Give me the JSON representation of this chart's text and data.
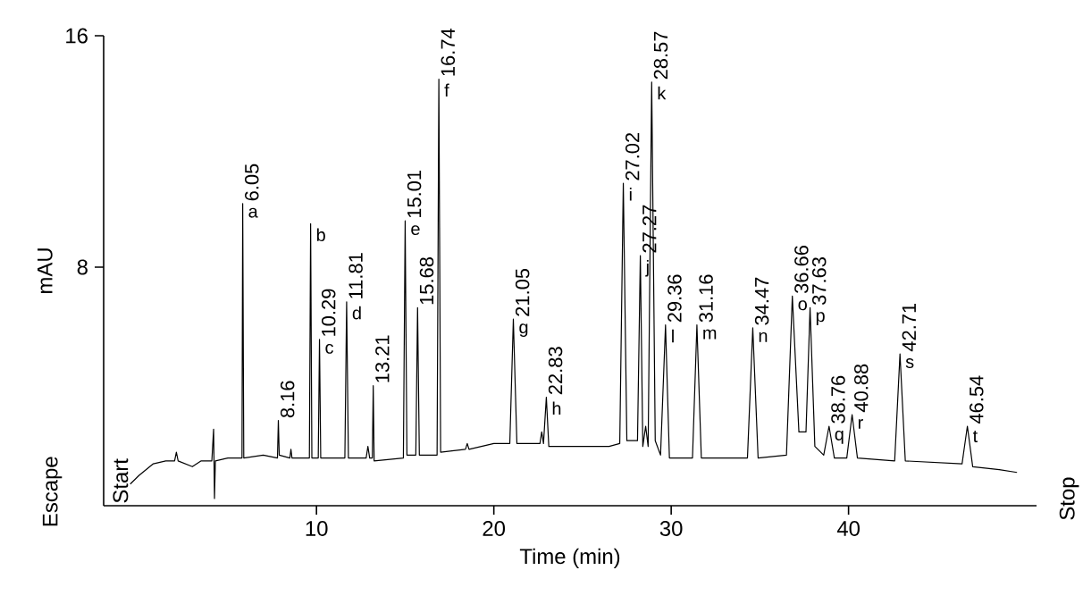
{
  "chart_data": {
    "type": "line",
    "xlabel": "Time (min)",
    "ylabel": "mAU",
    "xlim": [
      -2,
      50.6
    ],
    "ylim": [
      -0.25,
      16
    ],
    "xticks": [
      10,
      20,
      30,
      40
    ],
    "yticks": [
      8,
      16
    ],
    "series": [
      {
        "color": "#000000",
        "x": [
          -0.5,
          0.0,
          0.8,
          1.5,
          2.0,
          2.1,
          2.2,
          3.0,
          3.5,
          4.1,
          4.2,
          4.25,
          4.3,
          5.0,
          5.8,
          5.84,
          5.9,
          7.0,
          7.8,
          7.85,
          7.9,
          8.5,
          8.56,
          8.62,
          9.6,
          9.67,
          9.74,
          10.1,
          10.17,
          10.24,
          11.6,
          11.7,
          11.8,
          12.8,
          12.9,
          13.0,
          13.15,
          13.2,
          13.25,
          14.9,
          15.0,
          15.1,
          15.6,
          15.7,
          15.8,
          16.8,
          16.9,
          17.0,
          18.4,
          18.5,
          18.6,
          20.0,
          20.9,
          21.1,
          21.3,
          22.6,
          22.7,
          22.8,
          22.96,
          23.1,
          26.5,
          27.1,
          27.3,
          27.5,
          28.1,
          28.26,
          28.4,
          28.56,
          28.7,
          28.9,
          29.1,
          29.4,
          29.68,
          29.9,
          31.2,
          31.45,
          31.7,
          34.3,
          34.6,
          34.9,
          36.5,
          36.83,
          37.2,
          37.6,
          37.83,
          38.1,
          38.6,
          38.9,
          39.2,
          39.9,
          40.2,
          40.5,
          42.6,
          42.9,
          43.2,
          46.4,
          46.7,
          47.0,
          48.5,
          49.5
        ],
        "values": [
          0.5,
          0.8,
          1.2,
          1.3,
          1.3,
          1.6,
          1.3,
          1.1,
          1.3,
          1.3,
          2.4,
          0.0,
          1.3,
          1.4,
          1.4,
          10.2,
          1.4,
          1.5,
          1.4,
          2.7,
          1.5,
          1.4,
          1.7,
          1.4,
          1.4,
          9.5,
          1.4,
          1.4,
          5.5,
          1.4,
          1.4,
          6.8,
          1.4,
          1.4,
          1.8,
          1.4,
          1.4,
          3.9,
          1.3,
          1.4,
          9.6,
          1.5,
          1.5,
          6.6,
          1.5,
          1.5,
          14.5,
          1.6,
          1.7,
          1.9,
          1.7,
          1.9,
          1.9,
          6.2,
          1.9,
          1.9,
          2.3,
          1.9,
          3.5,
          1.8,
          1.8,
          1.9,
          10.9,
          2.0,
          2.0,
          8.4,
          1.8,
          2.5,
          1.8,
          14.4,
          2.0,
          1.5,
          6.0,
          1.4,
          1.4,
          6.0,
          1.4,
          1.4,
          5.9,
          1.4,
          1.5,
          7.0,
          2.3,
          2.3,
          6.6,
          1.8,
          1.5,
          2.5,
          1.4,
          1.4,
          2.9,
          1.4,
          1.3,
          5.0,
          1.3,
          1.2,
          2.5,
          1.1,
          1.0,
          0.9
        ]
      }
    ],
    "annotations": [
      "Start",
      "Escape",
      "Stop",
      {
        "text": "a",
        "x": 5.84,
        "y": 10.2
      },
      {
        "text": "b",
        "x": 9.67,
        "y": 9.5
      },
      {
        "text": "c",
        "x": 10.17,
        "y": 5.5
      },
      {
        "text": "d",
        "x": 11.7,
        "y": 6.8
      },
      {
        "text": "e",
        "x": 15.0,
        "y": 9.6
      },
      {
        "text": "f",
        "x": 16.9,
        "y": 14.5
      },
      {
        "text": "g",
        "x": 21.1,
        "y": 6.2
      },
      {
        "text": "h",
        "x": 22.96,
        "y": 3.5
      },
      {
        "text": "i",
        "x": 27.3,
        "y": 10.9
      },
      {
        "text": "j",
        "x": 28.26,
        "y": 8.4
      },
      {
        "text": "k",
        "x": 28.9,
        "y": 14.4
      },
      {
        "text": "l",
        "x": 29.68,
        "y": 6.0
      },
      {
        "text": "m",
        "x": 31.45,
        "y": 6.0
      },
      {
        "text": "n",
        "x": 34.6,
        "y": 5.9
      },
      {
        "text": "o",
        "x": 36.83,
        "y": 7.0
      },
      {
        "text": "p",
        "x": 37.83,
        "y": 6.6
      },
      {
        "text": "q",
        "x": 38.9,
        "y": 2.5
      },
      {
        "text": "r",
        "x": 40.2,
        "y": 2.9
      },
      {
        "text": "s",
        "x": 42.9,
        "y": 5.0
      },
      {
        "text": "t",
        "x": 46.7,
        "y": 2.5
      },
      {
        "text": "6.05",
        "x": 5.84,
        "y": 10.2
      },
      {
        "text": "8.16",
        "x": 7.85,
        "y": 2.7
      },
      {
        "text": "10.29",
        "x": 10.17,
        "y": 5.5
      },
      {
        "text": "11.81",
        "x": 11.7,
        "y": 6.8
      },
      {
        "text": "13.21",
        "x": 13.2,
        "y": 3.9
      },
      {
        "text": "15.01",
        "x": 15.0,
        "y": 9.6
      },
      {
        "text": "15.68",
        "x": 15.7,
        "y": 6.6
      },
      {
        "text": "16.74",
        "x": 16.9,
        "y": 14.5
      },
      {
        "text": "21.05",
        "x": 21.1,
        "y": 6.2
      },
      {
        "text": "22.83",
        "x": 22.96,
        "y": 3.5
      },
      {
        "text": "27.02",
        "x": 27.3,
        "y": 10.9
      },
      {
        "text": "27.27",
        "x": 28.26,
        "y": 8.4
      },
      {
        "text": "28.57",
        "x": 28.9,
        "y": 14.4
      },
      {
        "text": "29.36",
        "x": 29.68,
        "y": 6.0
      },
      {
        "text": "31.16",
        "x": 31.45,
        "y": 6.0
      },
      {
        "text": "34.47",
        "x": 34.6,
        "y": 5.9
      },
      {
        "text": "36.66",
        "x": 36.83,
        "y": 7.0
      },
      {
        "text": "37.63",
        "x": 37.83,
        "y": 6.6
      },
      {
        "text": "38.76",
        "x": 38.9,
        "y": 2.5
      },
      {
        "text": "40.88",
        "x": 40.2,
        "y": 2.9
      },
      {
        "text": "42.71",
        "x": 42.9,
        "y": 5.0
      },
      {
        "text": "46.54",
        "x": 46.7,
        "y": 2.5
      }
    ]
  }
}
